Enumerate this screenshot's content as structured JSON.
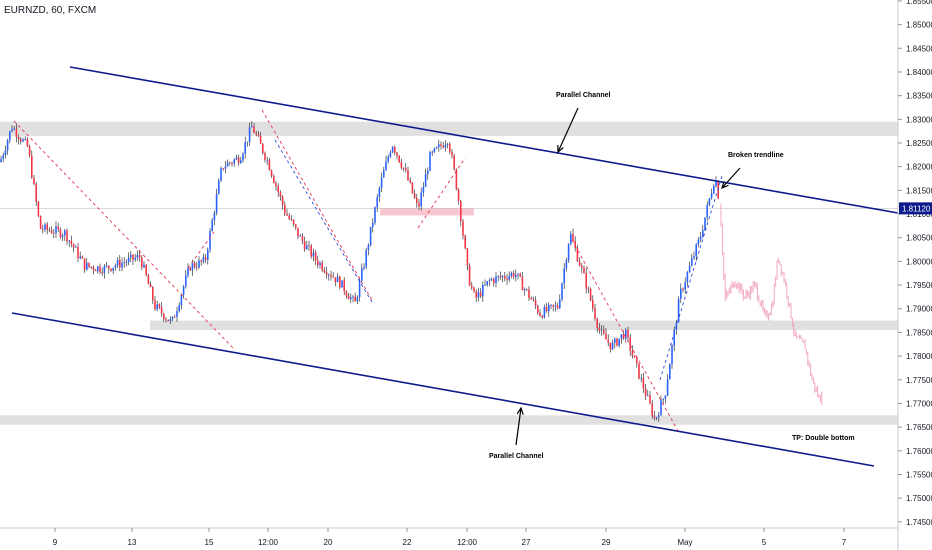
{
  "header": {
    "symbol_title": "EURNZD, 60, FXCM"
  },
  "chart_data": {
    "type": "candlestick",
    "symbol": "EURNZD",
    "timeframe": "60",
    "source": "FXCM",
    "y_ticks": [
      "1.85500",
      "1.85000",
      "1.84500",
      "1.84000",
      "1.83500",
      "1.83000",
      "1.82500",
      "1.82000",
      "1.81500",
      "1.81000",
      "1.80500",
      "1.80000",
      "1.79500",
      "1.79000",
      "1.78500",
      "1.78000",
      "1.77500",
      "1.77000",
      "1.76500",
      "1.76000",
      "1.75500",
      "1.75000",
      "1.74500"
    ],
    "y_tick_values": [
      1.855,
      1.85,
      1.845,
      1.84,
      1.835,
      1.83,
      1.825,
      1.82,
      1.815,
      1.81,
      1.805,
      1.8,
      1.795,
      1.79,
      1.785,
      1.78,
      1.775,
      1.77,
      1.765,
      1.76,
      1.755,
      1.75,
      1.745
    ],
    "ylim": [
      1.743,
      1.857
    ],
    "x_ticks": [
      "9",
      "13",
      "15",
      "12:00",
      "20",
      "22",
      "12:00",
      "27",
      "29",
      "May",
      "5",
      "7"
    ],
    "current_price": "1.81120",
    "colors": {
      "up": "#2962ff",
      "down": "#f23645",
      "wick": "#131722",
      "channel": "#0d1b8c",
      "projection": "#f2a7bd",
      "zone": "#d8d8d8",
      "red_zone": "#f8b9c4",
      "badge": "#0d1b8c"
    },
    "annotations": {
      "channel_top": "Parallel Channel",
      "channel_bottom": "Parallel Channel",
      "broken": "Broken trendline",
      "tp": "TP: Double bottom"
    },
    "waypoints": [
      [
        0,
        1.821
      ],
      [
        12,
        1.8285
      ],
      [
        28,
        1.824
      ],
      [
        40,
        1.807
      ],
      [
        65,
        1.806
      ],
      [
        85,
        1.799
      ],
      [
        105,
        1.7985
      ],
      [
        140,
        1.801
      ],
      [
        155,
        1.7905
      ],
      [
        172,
        1.787
      ],
      [
        190,
        1.799
      ],
      [
        205,
        1.8
      ],
      [
        222,
        1.82
      ],
      [
        240,
        1.822
      ],
      [
        252,
        1.8285
      ],
      [
        268,
        1.821
      ],
      [
        285,
        1.8105
      ],
      [
        300,
        1.805
      ],
      [
        315,
        1.8005
      ],
      [
        340,
        1.7955
      ],
      [
        355,
        1.791
      ],
      [
        365,
        1.8005
      ],
      [
        380,
        1.816
      ],
      [
        392,
        1.825
      ],
      [
        405,
        1.819
      ],
      [
        418,
        1.811
      ],
      [
        430,
        1.822
      ],
      [
        448,
        1.826
      ],
      [
        455,
        1.818
      ],
      [
        460,
        1.811
      ],
      [
        468,
        1.797
      ],
      [
        475,
        1.792
      ],
      [
        490,
        1.796
      ],
      [
        515,
        1.7975
      ],
      [
        540,
        1.789
      ],
      [
        558,
        1.7905
      ],
      [
        570,
        1.806
      ],
      [
        585,
        1.796
      ],
      [
        600,
        1.785
      ],
      [
        612,
        1.782
      ],
      [
        625,
        1.785
      ],
      [
        640,
        1.7755
      ],
      [
        655,
        1.7665
      ],
      [
        665,
        1.772
      ],
      [
        680,
        1.793
      ],
      [
        700,
        1.805
      ],
      [
        715,
        1.818
      ],
      [
        720,
        1.812
      ]
    ],
    "projection": [
      [
        720,
        1.812
      ],
      [
        725,
        1.792
      ],
      [
        735,
        1.796
      ],
      [
        745,
        1.7925
      ],
      [
        755,
        1.795
      ],
      [
        765,
        1.788
      ],
      [
        772,
        1.7905
      ],
      [
        778,
        1.801
      ],
      [
        785,
        1.7955
      ],
      [
        795,
        1.784
      ],
      [
        805,
        1.782
      ],
      [
        812,
        1.775
      ],
      [
        820,
        1.7705
      ],
      [
        823,
        1.775
      ]
    ]
  }
}
